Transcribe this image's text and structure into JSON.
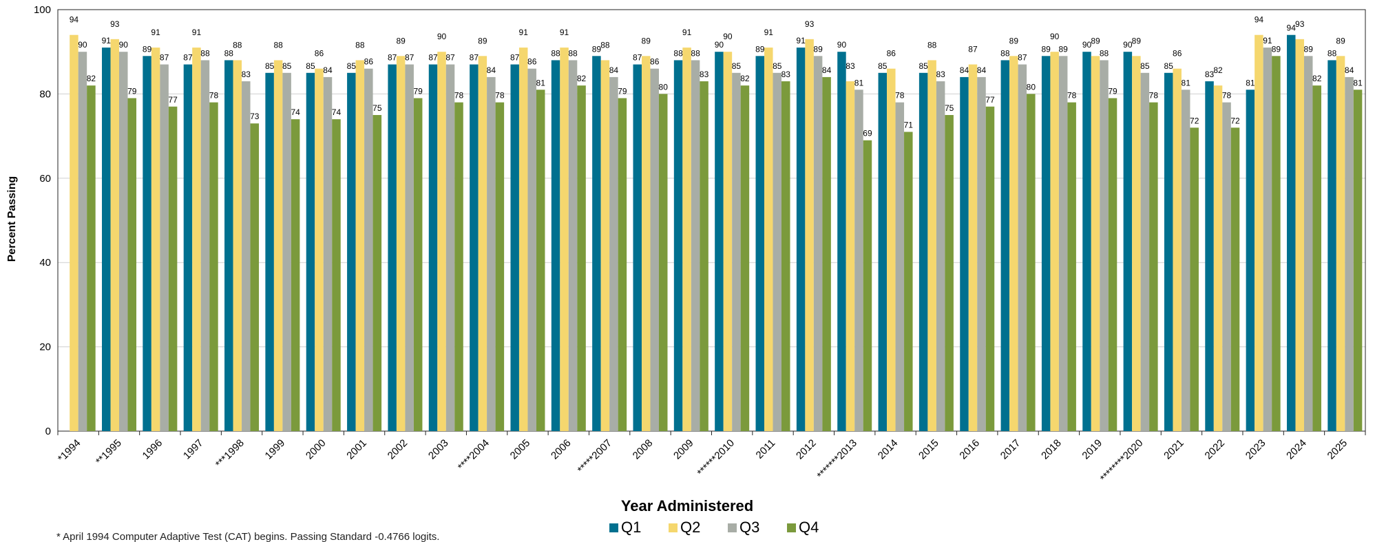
{
  "chart_data": {
    "type": "bar",
    "title": "",
    "xlabel": "Year Administered",
    "ylabel": "Percent Passing",
    "ylim": [
      0,
      100
    ],
    "yticks": [
      "0",
      "20",
      "40",
      "60",
      "80",
      "100"
    ],
    "grid": true,
    "legend_position": "bottom-center",
    "categories": [
      "*1994",
      "**1995",
      "1996",
      "1997",
      "***1998",
      "1999",
      "2000",
      "2001",
      "2002",
      "2003",
      "****2004",
      "2005",
      "2006",
      "*****2007",
      "2008",
      "2009",
      "******2010",
      "2011",
      "2012",
      "*******2013",
      "2014",
      "2015",
      "2016",
      "2017",
      "2018",
      "2019",
      "********2020",
      "2021",
      "2022",
      "2023",
      "2024",
      "2025"
    ],
    "series": [
      {
        "name": "Q1",
        "color": "#00708f",
        "values": [
          null,
          91,
          89,
          87,
          88,
          85,
          85,
          85,
          87,
          87,
          87,
          87,
          88,
          89,
          87,
          88,
          90,
          89,
          91,
          90,
          85,
          85,
          84,
          88,
          89,
          90,
          90,
          85,
          83,
          81,
          94,
          88
        ]
      },
      {
        "name": "Q2",
        "color": "#f5d76e",
        "values": [
          94,
          93,
          91,
          91,
          88,
          88,
          86,
          88,
          89,
          90,
          89,
          91,
          91,
          88,
          89,
          91,
          90,
          91,
          93,
          83,
          86,
          88,
          87,
          89,
          90,
          89,
          89,
          86,
          82,
          94,
          93,
          89
        ]
      },
      {
        "name": "Q3",
        "color": "#a8ada6",
        "values": [
          90,
          90,
          87,
          88,
          83,
          85,
          84,
          86,
          87,
          87,
          84,
          86,
          88,
          84,
          86,
          88,
          85,
          85,
          89,
          81,
          78,
          83,
          84,
          87,
          89,
          88,
          85,
          81,
          78,
          91,
          89,
          84
        ]
      },
      {
        "name": "Q4",
        "color": "#7b9a3c",
        "values": [
          82,
          79,
          77,
          78,
          73,
          74,
          74,
          75,
          79,
          78,
          78,
          81,
          82,
          79,
          80,
          83,
          82,
          83,
          84,
          69,
          71,
          75,
          77,
          80,
          78,
          79,
          78,
          72,
          72,
          89,
          82,
          81
        ]
      }
    ],
    "footnote": "* April 1994 Computer Adaptive Test (CAT) begins. Passing Standard -0.4766 logits."
  }
}
